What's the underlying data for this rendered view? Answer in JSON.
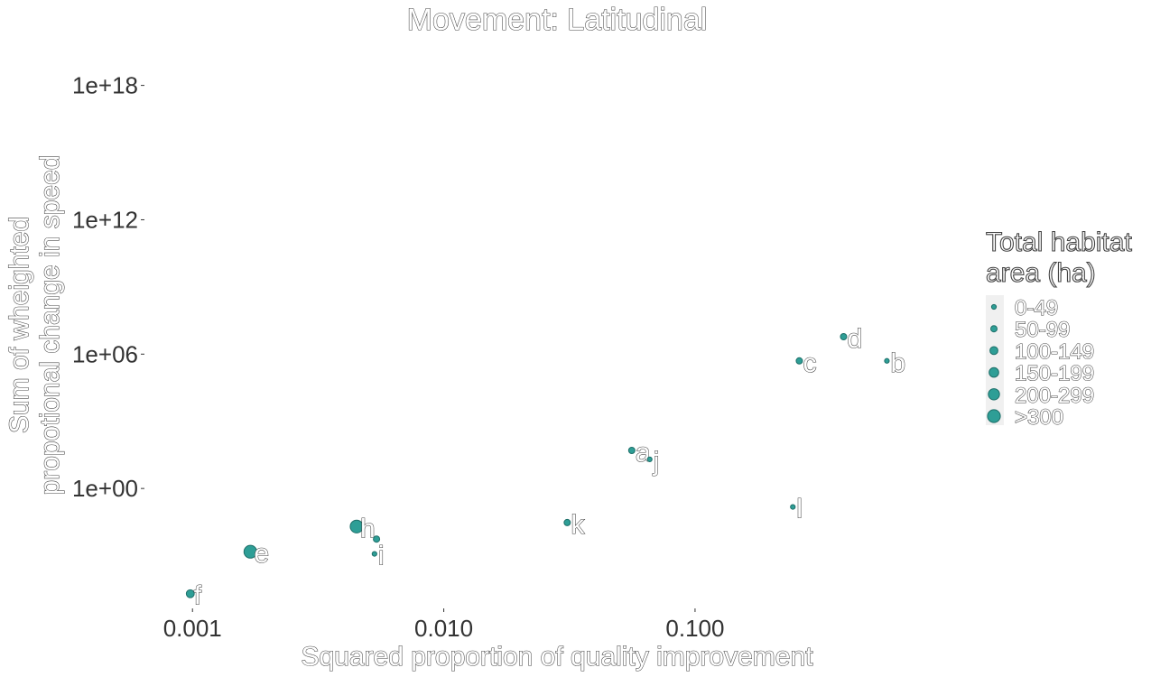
{
  "chart_data": {
    "type": "scatter",
    "title": "Movement: Latitudinal",
    "xlabel": "Squared proportion of quality improvement",
    "ylabel_lines": [
      "Sum of wheighted",
      "propotional change in speed"
    ],
    "x_scale": "log10",
    "y_scale": "log10",
    "xlim": [
      0.00066,
      1.3
    ],
    "ylim": [
      1e-06,
      1e+20
    ],
    "x_ticks": [
      {
        "value": 0.001,
        "label": "0.001"
      },
      {
        "value": 0.01,
        "label": "0.010"
      },
      {
        "value": 0.1,
        "label": "0.100"
      }
    ],
    "y_ticks": [
      {
        "value": 1,
        "label": "1e+00"
      },
      {
        "value": 1000000.0,
        "label": "1e+06"
      },
      {
        "value": 1000000000000.0,
        "label": "1e+12"
      },
      {
        "value": 1e+18,
        "label": "1e+18"
      }
    ],
    "grid": false,
    "legend": {
      "title": "Total habitat\narea (ha)",
      "placement": "right",
      "entries": [
        {
          "label": "0-49",
          "size_class": 1
        },
        {
          "label": "50-99",
          "size_class": 2
        },
        {
          "label": "100-149",
          "size_class": 3
        },
        {
          "label": "150-199",
          "size_class": 4
        },
        {
          "label": "200-299",
          "size_class": 5
        },
        {
          "label": ">300",
          "size_class": 6
        }
      ]
    },
    "points": [
      {
        "label": "a",
        "x": 0.056,
        "y": 50,
        "size_class": 2
      },
      {
        "label": "b",
        "x": 0.58,
        "y": 500000.0,
        "size_class": 1
      },
      {
        "label": "c",
        "x": 0.26,
        "y": 500000.0,
        "size_class": 2
      },
      {
        "label": "d",
        "x": 0.39,
        "y": 6000000.0,
        "size_class": 2
      },
      {
        "label": "e",
        "x": 0.0017,
        "y": 0.0015,
        "size_class": 6
      },
      {
        "label": "f",
        "x": 0.00098,
        "y": 2e-05,
        "size_class": 3
      },
      {
        "label": "h",
        "x": 0.0045,
        "y": 0.02,
        "size_class": 6
      },
      {
        "label": "i",
        "x": 0.0053,
        "y": 0.0012,
        "size_class": 1
      },
      {
        "label": "j",
        "x": 0.066,
        "y": 20,
        "size_class": 1
      },
      {
        "label": "k",
        "x": 0.031,
        "y": 0.03,
        "size_class": 2
      },
      {
        "label": "l",
        "x": 0.245,
        "y": 0.15,
        "size_class": 1
      },
      {
        "label": "",
        "x": 0.0054,
        "y": 0.0055,
        "size_class": 2
      }
    ],
    "colors": {
      "point_fill": "#2E9E96",
      "point_stroke": "#1E6F69",
      "legend_key_bg": "#F0F0F0",
      "tick_text": "#333333"
    }
  }
}
